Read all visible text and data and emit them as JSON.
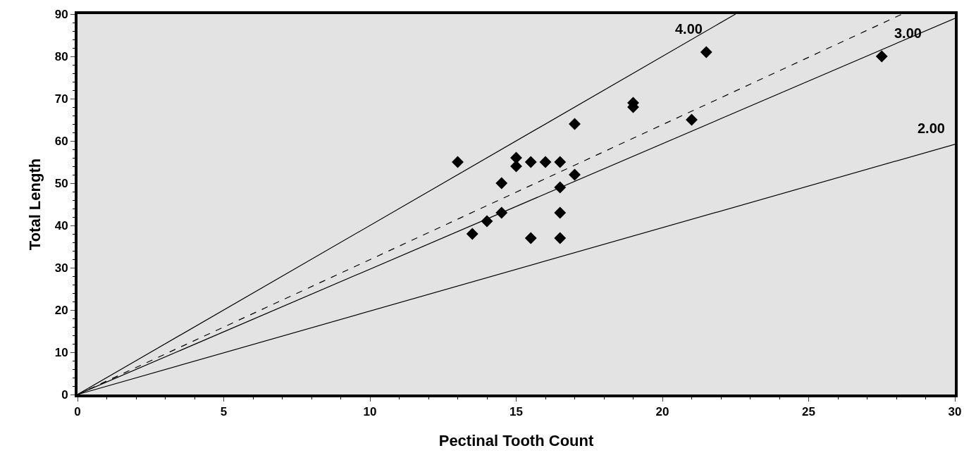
{
  "chart_data": {
    "type": "scatter",
    "xlabel": "Pectinal Tooth Count",
    "ylabel": "Total Length",
    "xlim": [
      0,
      30
    ],
    "ylim": [
      0,
      90
    ],
    "xticks": [
      0,
      5,
      10,
      15,
      20,
      25,
      30
    ],
    "yticks": [
      0,
      10,
      20,
      30,
      40,
      50,
      60,
      70,
      80,
      90
    ],
    "grid": false,
    "legend": false,
    "series": [
      {
        "type": "line",
        "name": "4.00",
        "color": "#000000",
        "line_style": "solid",
        "marker": "none",
        "x": [
          0,
          22.5
        ],
        "values": [
          0,
          90
        ]
      },
      {
        "type": "line",
        "name": "3.00",
        "color": "#000000",
        "line_style": "solid",
        "marker": "none",
        "x": [
          0,
          30
        ],
        "values": [
          0,
          89
        ]
      },
      {
        "type": "line",
        "name": "2.00",
        "color": "#000000",
        "line_style": "solid",
        "marker": "none",
        "x": [
          0,
          30
        ],
        "values": [
          0,
          59.2
        ]
      },
      {
        "type": "line",
        "color": "#000000",
        "line_style": "dashed",
        "marker": "none",
        "x": [
          0,
          28.2
        ],
        "values": [
          0,
          90
        ]
      },
      {
        "color": "#000000",
        "marker": "diamond",
        "x": [
          13,
          13.5,
          14,
          14.5,
          14.5,
          15,
          15,
          15.5,
          15.5,
          16,
          16.5,
          16.5,
          16.5,
          16.5,
          17,
          17,
          19,
          19,
          21,
          21.5,
          27.5
        ],
        "values": [
          55,
          38,
          41,
          50,
          43,
          56,
          54,
          55,
          37,
          55,
          55,
          49,
          43,
          37,
          64,
          52,
          69,
          68,
          65,
          81,
          80
        ]
      }
    ]
  }
}
